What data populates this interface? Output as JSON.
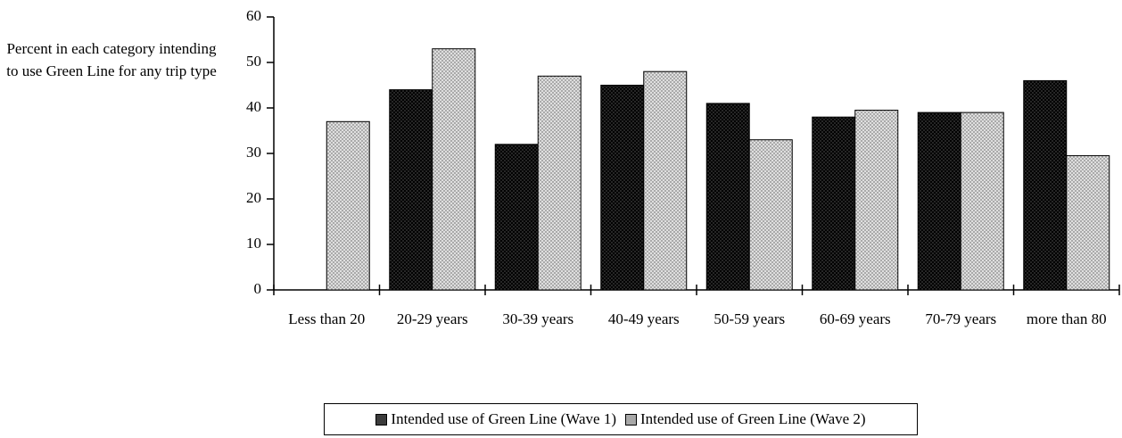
{
  "chart_data": {
    "type": "bar",
    "y_label": "Percent in each category intending to use Green Line for any trip type",
    "categories": [
      "Less than 20",
      "20-29 years",
      "30-39 years",
      "40-49 years",
      "50-59 years",
      "60-69 years",
      "70-79 years",
      "more than 80"
    ],
    "series": [
      {
        "name": "Intended use of Green Line (Wave 1)",
        "color": "#3c3c3c",
        "values": [
          0,
          44,
          32,
          45,
          41,
          38,
          39,
          46
        ]
      },
      {
        "name": "Intended use of Green Line (Wave 2)",
        "color": "#a8a8a8",
        "values": [
          37,
          53,
          47,
          48,
          33,
          39.5,
          39,
          29.5
        ]
      }
    ],
    "ylim": [
      0,
      60
    ],
    "yticks": [
      0,
      10,
      20,
      30,
      40,
      50,
      60
    ],
    "grid": false,
    "legend": "bottom"
  }
}
